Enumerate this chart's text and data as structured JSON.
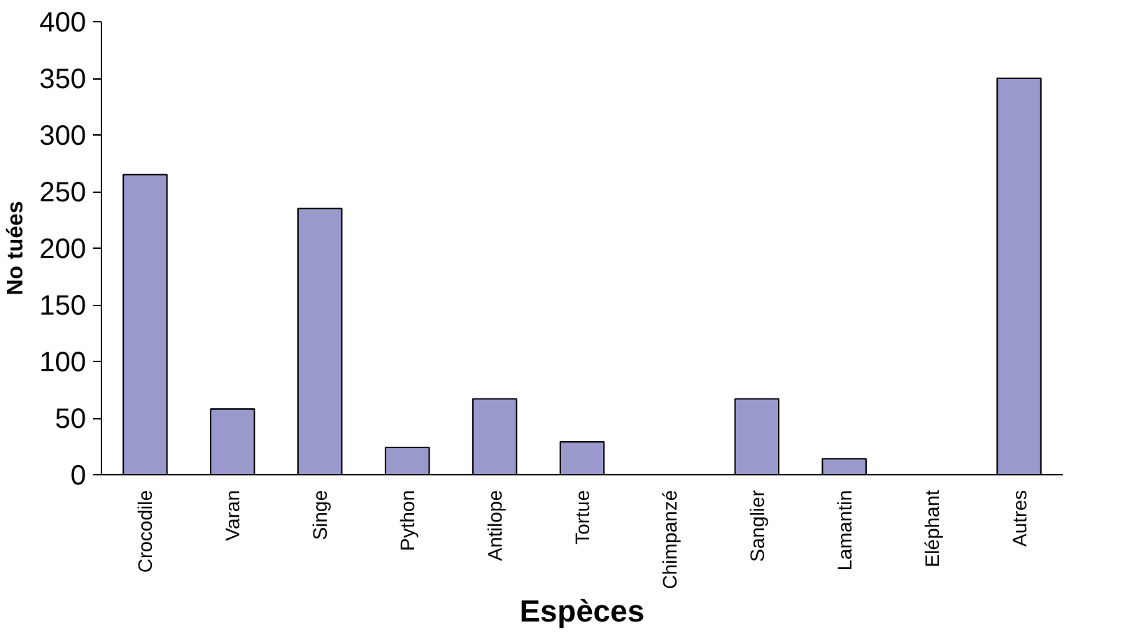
{
  "chart_data": {
    "type": "bar",
    "xlabel": "Espèces",
    "ylabel": "No tuées",
    "categories": [
      "Crocodile",
      "Varan",
      "Singe",
      "Python",
      "Antilope",
      "Tortue",
      "Chimpanzé",
      "Sanglier",
      "Lamantin",
      "Eléphant",
      "Autres"
    ],
    "values": [
      265,
      58,
      235,
      24,
      67,
      29,
      0,
      67,
      14,
      0,
      350
    ],
    "color": "#9999cc",
    "ylim": [
      0,
      400
    ],
    "yticks": [
      0,
      50,
      100,
      150,
      200,
      250,
      300,
      350,
      400
    ],
    "grid": false
  }
}
